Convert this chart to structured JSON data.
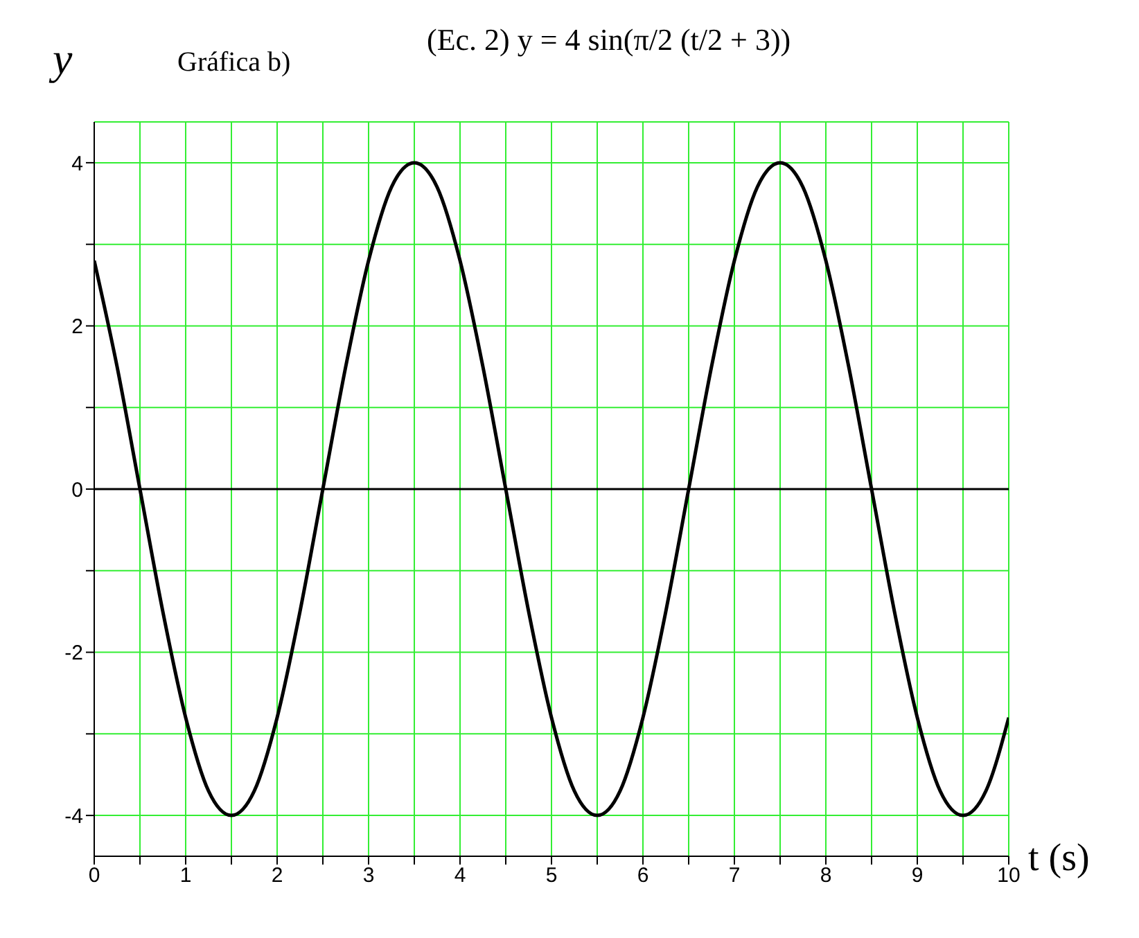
{
  "chart_data": {
    "type": "line",
    "title": "Gráfica b)",
    "xlabel": "t (s)",
    "ylabel": "y",
    "annotations": [
      "(Ec. 2)  y = 4 sin(π/2 (t/2 + 3))"
    ],
    "x": [
      0,
      0.25,
      0.5,
      0.75,
      1,
      1.25,
      1.5,
      1.75,
      2,
      2.25,
      2.5,
      2.75,
      3,
      3.25,
      3.5,
      3.75,
      4,
      4.25,
      4.5,
      4.75,
      5,
      5.25,
      5.5,
      5.75,
      6,
      6.25,
      6.5,
      6.75,
      7,
      7.25,
      7.5,
      7.75,
      8,
      8.25,
      8.5,
      8.75,
      9,
      9.25,
      9.5,
      9.75,
      10
    ],
    "series": [
      {
        "color": "#000000",
        "values": [
          2.8,
          1.5,
          0,
          -1.5,
          -2.8,
          -3.7,
          -4,
          -3.7,
          -2.8,
          -1.5,
          0,
          1.5,
          2.8,
          3.7,
          4,
          3.7,
          2.8,
          1.5,
          0,
          -1.5,
          -2.8,
          -3.7,
          -4,
          -3.7,
          -2.8,
          -1.5,
          0,
          1.5,
          2.8,
          3.7,
          4,
          3.7,
          2.8,
          1.5,
          0,
          -1.5,
          -2.8,
          -3.7,
          -4,
          -3.7,
          -2.8
        ]
      }
    ],
    "xlim": [
      0,
      10
    ],
    "xticks": [
      0,
      {
        "value": 0.5,
        "label": null
      },
      1,
      {
        "value": 1.5,
        "label": null
      },
      2,
      {
        "value": 2.5,
        "label": null
      },
      3,
      {
        "value": 3.5,
        "label": null
      },
      4,
      {
        "value": 4.5,
        "label": null
      },
      5,
      {
        "value": 5.5,
        "label": null
      },
      6,
      {
        "value": 6.5,
        "label": null
      },
      7,
      {
        "value": 7.5,
        "label": null
      },
      8,
      {
        "value": 8.5,
        "label": null
      },
      9,
      {
        "value": 9.5,
        "label": null
      },
      10
    ],
    "ylim": [
      -4.5,
      4.5
    ],
    "yticks": [
      -4,
      {
        "value": -3,
        "label": null
      },
      -2,
      {
        "value": -1,
        "label": null
      },
      0,
      {
        "value": 1,
        "label": null
      },
      2,
      {
        "value": 3,
        "label": null
      },
      4
    ],
    "ref_lines": [
      {
        "axis": "y",
        "value": 0,
        "color": "#000000"
      }
    ],
    "grid": true,
    "marker": "none",
    "line_style": "solid"
  }
}
